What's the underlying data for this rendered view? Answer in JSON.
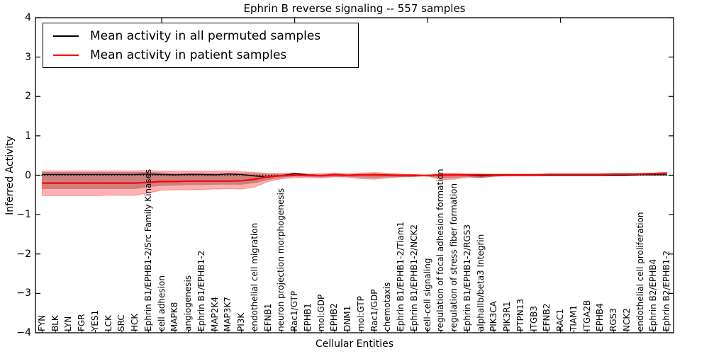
{
  "title": "Ephrin B reverse signaling -- 557 samples",
  "axes": {
    "xlabel": "Cellular Entities",
    "ylabel": "Inferred Activity",
    "y_tick_labels": [
      "4",
      "3",
      "2",
      "1",
      "0",
      "−1",
      "−2",
      "−3",
      "−4"
    ]
  },
  "legend": {
    "items": [
      {
        "label": "Mean activity in all permuted samples",
        "color": "#000000"
      },
      {
        "label": "Mean activity in patient samples",
        "color": "#ff0000"
      }
    ]
  },
  "chart_data": {
    "type": "line",
    "title": "Ephrin B reverse signaling -- 557 samples",
    "xlabel": "Cellular Entities",
    "ylabel": "Inferred Activity",
    "ylim": [
      -4,
      4
    ],
    "y_ticks": [
      4,
      3,
      2,
      1,
      0,
      -1,
      -2,
      -3,
      -4
    ],
    "x_major_ticks": [
      10,
      20,
      30,
      40
    ],
    "grid": false,
    "legend_position": "upper left",
    "zero_line": 0,
    "categories": [
      "FYN",
      "BLK",
      "LYN",
      "FGR",
      "YES1",
      "LCK",
      "SRC",
      "HCK",
      "Ephrin B1/EPHB1-2/Src Family Kinases",
      "cell adhesion",
      "MAPK8",
      "angiogenesis",
      "Ephrin B1/EPHB1-2",
      "MAP2K4",
      "MAP3K7",
      "PI3K",
      "endothelial cell migration",
      "EFNB1",
      "neuron projection morphogenesis",
      "Rac1/GTP",
      "EPHB1",
      "mol:GDP",
      "EPHB2",
      "DNM1",
      "mol:GTP",
      "Rac1/GDP",
      "chemotaxis",
      "Ephrin B1/EPHB1-2/Tiam1",
      "Ephrin B1/EPHB1-2/NCK2",
      "cell-cell signaling",
      "regulation of focal adhesion formation",
      "regulation of stress fiber formation",
      "Ephrin B1/EPHB1-2/RGS3",
      "alphaIIb/beta3 Integrin",
      "PIK3CA",
      "PIK3R1",
      "PTPN13",
      "ITGB3",
      "EFNB2",
      "RAC1",
      "TIAM1",
      "ITGA2B",
      "EPHB4",
      "RGS3",
      "NCK2",
      "endothelial cell proliferation",
      "Ephrin B2/EPHB4",
      "Ephrin B2/EPHB1-2"
    ],
    "series": [
      {
        "name": "Mean activity in all permuted samples",
        "color": "#000000",
        "values": [
          0.02,
          0.02,
          0.02,
          0.02,
          0.02,
          0.02,
          0.02,
          0.02,
          0.03,
          0.02,
          0.01,
          0.02,
          0.02,
          0.01,
          0.03,
          0.02,
          -0.02,
          -0.05,
          -0.01,
          0.04,
          0.01,
          -0.01,
          0.02,
          0.0,
          0.01,
          0.02,
          0.01,
          0.0,
          -0.01,
          0.0,
          0.01,
          0.01,
          0.0,
          -0.02,
          0.0,
          0.0,
          0.0,
          0.0,
          0.0,
          0.0,
          0.0,
          0.0,
          0.0,
          0.0,
          0.0,
          0.01,
          0.01,
          0.01
        ]
      },
      {
        "name": "Mean activity in patient samples",
        "color": "#ff0000",
        "values": [
          -0.2,
          -0.2,
          -0.2,
          -0.2,
          -0.2,
          -0.2,
          -0.2,
          -0.2,
          -0.18,
          -0.16,
          -0.16,
          -0.15,
          -0.15,
          -0.15,
          -0.15,
          -0.14,
          -0.1,
          -0.04,
          -0.01,
          0.0,
          0.0,
          -0.01,
          0.01,
          0.0,
          0.01,
          0.01,
          0.0,
          0.0,
          0.0,
          -0.01,
          0.01,
          0.01,
          0.01,
          0.01,
          0.01,
          0.01,
          0.01,
          0.01,
          0.02,
          0.02,
          0.02,
          0.02,
          0.02,
          0.03,
          0.03,
          0.03,
          0.04,
          0.05
        ]
      }
    ],
    "bands": [
      {
        "name": "permuted samples std band",
        "color": "rgba(0,0,0,0.28)",
        "upper": [
          0.08,
          0.08,
          0.08,
          0.08,
          0.08,
          0.08,
          0.08,
          0.08,
          0.08,
          0.07,
          0.06,
          0.06,
          0.06,
          0.06,
          0.06,
          0.06,
          0.05,
          0.03,
          0.03,
          0.06,
          0.03,
          0.02,
          0.04,
          0.02,
          0.03,
          0.04,
          0.03,
          0.02,
          0.01,
          0.01,
          0.03,
          0.03,
          0.02,
          0.02,
          0.01,
          0.01,
          0.01,
          0.01,
          0.01,
          0.01,
          0.01,
          0.01,
          0.01,
          0.01,
          0.01,
          0.02,
          0.02,
          0.02
        ],
        "lower": [
          -0.35,
          -0.35,
          -0.35,
          -0.35,
          -0.35,
          -0.35,
          -0.35,
          -0.35,
          -0.3,
          -0.27,
          -0.26,
          -0.25,
          -0.25,
          -0.24,
          -0.24,
          -0.24,
          -0.2,
          -0.12,
          -0.07,
          -0.03,
          -0.04,
          -0.05,
          -0.03,
          -0.04,
          -0.06,
          -0.07,
          -0.05,
          -0.05,
          -0.04,
          -0.02,
          -0.08,
          -0.07,
          -0.04,
          -0.07,
          -0.03,
          -0.02,
          -0.02,
          -0.02,
          -0.01,
          -0.01,
          -0.01,
          -0.01,
          -0.01,
          -0.01,
          -0.01,
          0.0,
          0.0,
          0.0
        ]
      },
      {
        "name": "patient samples std band",
        "color": "rgba(255,0,0,0.30)",
        "upper": [
          0.11,
          0.11,
          0.11,
          0.11,
          0.11,
          0.11,
          0.11,
          0.11,
          0.12,
          0.1,
          0.1,
          0.1,
          0.1,
          0.1,
          0.11,
          0.09,
          0.07,
          0.05,
          0.05,
          0.06,
          0.03,
          0.04,
          0.06,
          0.03,
          0.06,
          0.07,
          0.05,
          0.03,
          0.02,
          0.0,
          0.05,
          0.05,
          0.03,
          0.03,
          0.02,
          0.02,
          0.02,
          0.02,
          0.03,
          0.03,
          0.03,
          0.03,
          0.03,
          0.04,
          0.04,
          0.05,
          0.06,
          0.08
        ],
        "lower": [
          -0.52,
          -0.52,
          -0.52,
          -0.52,
          -0.52,
          -0.51,
          -0.51,
          -0.51,
          -0.45,
          -0.38,
          -0.37,
          -0.37,
          -0.36,
          -0.35,
          -0.34,
          -0.35,
          -0.3,
          -0.16,
          -0.09,
          -0.06,
          -0.05,
          -0.07,
          -0.04,
          -0.05,
          -0.09,
          -0.1,
          -0.07,
          -0.04,
          -0.03,
          -0.02,
          -0.11,
          -0.1,
          -0.05,
          -0.06,
          -0.03,
          -0.02,
          -0.02,
          -0.02,
          -0.01,
          -0.01,
          -0.01,
          -0.01,
          -0.01,
          0.0,
          0.0,
          0.01,
          0.02,
          0.02
        ]
      }
    ]
  }
}
